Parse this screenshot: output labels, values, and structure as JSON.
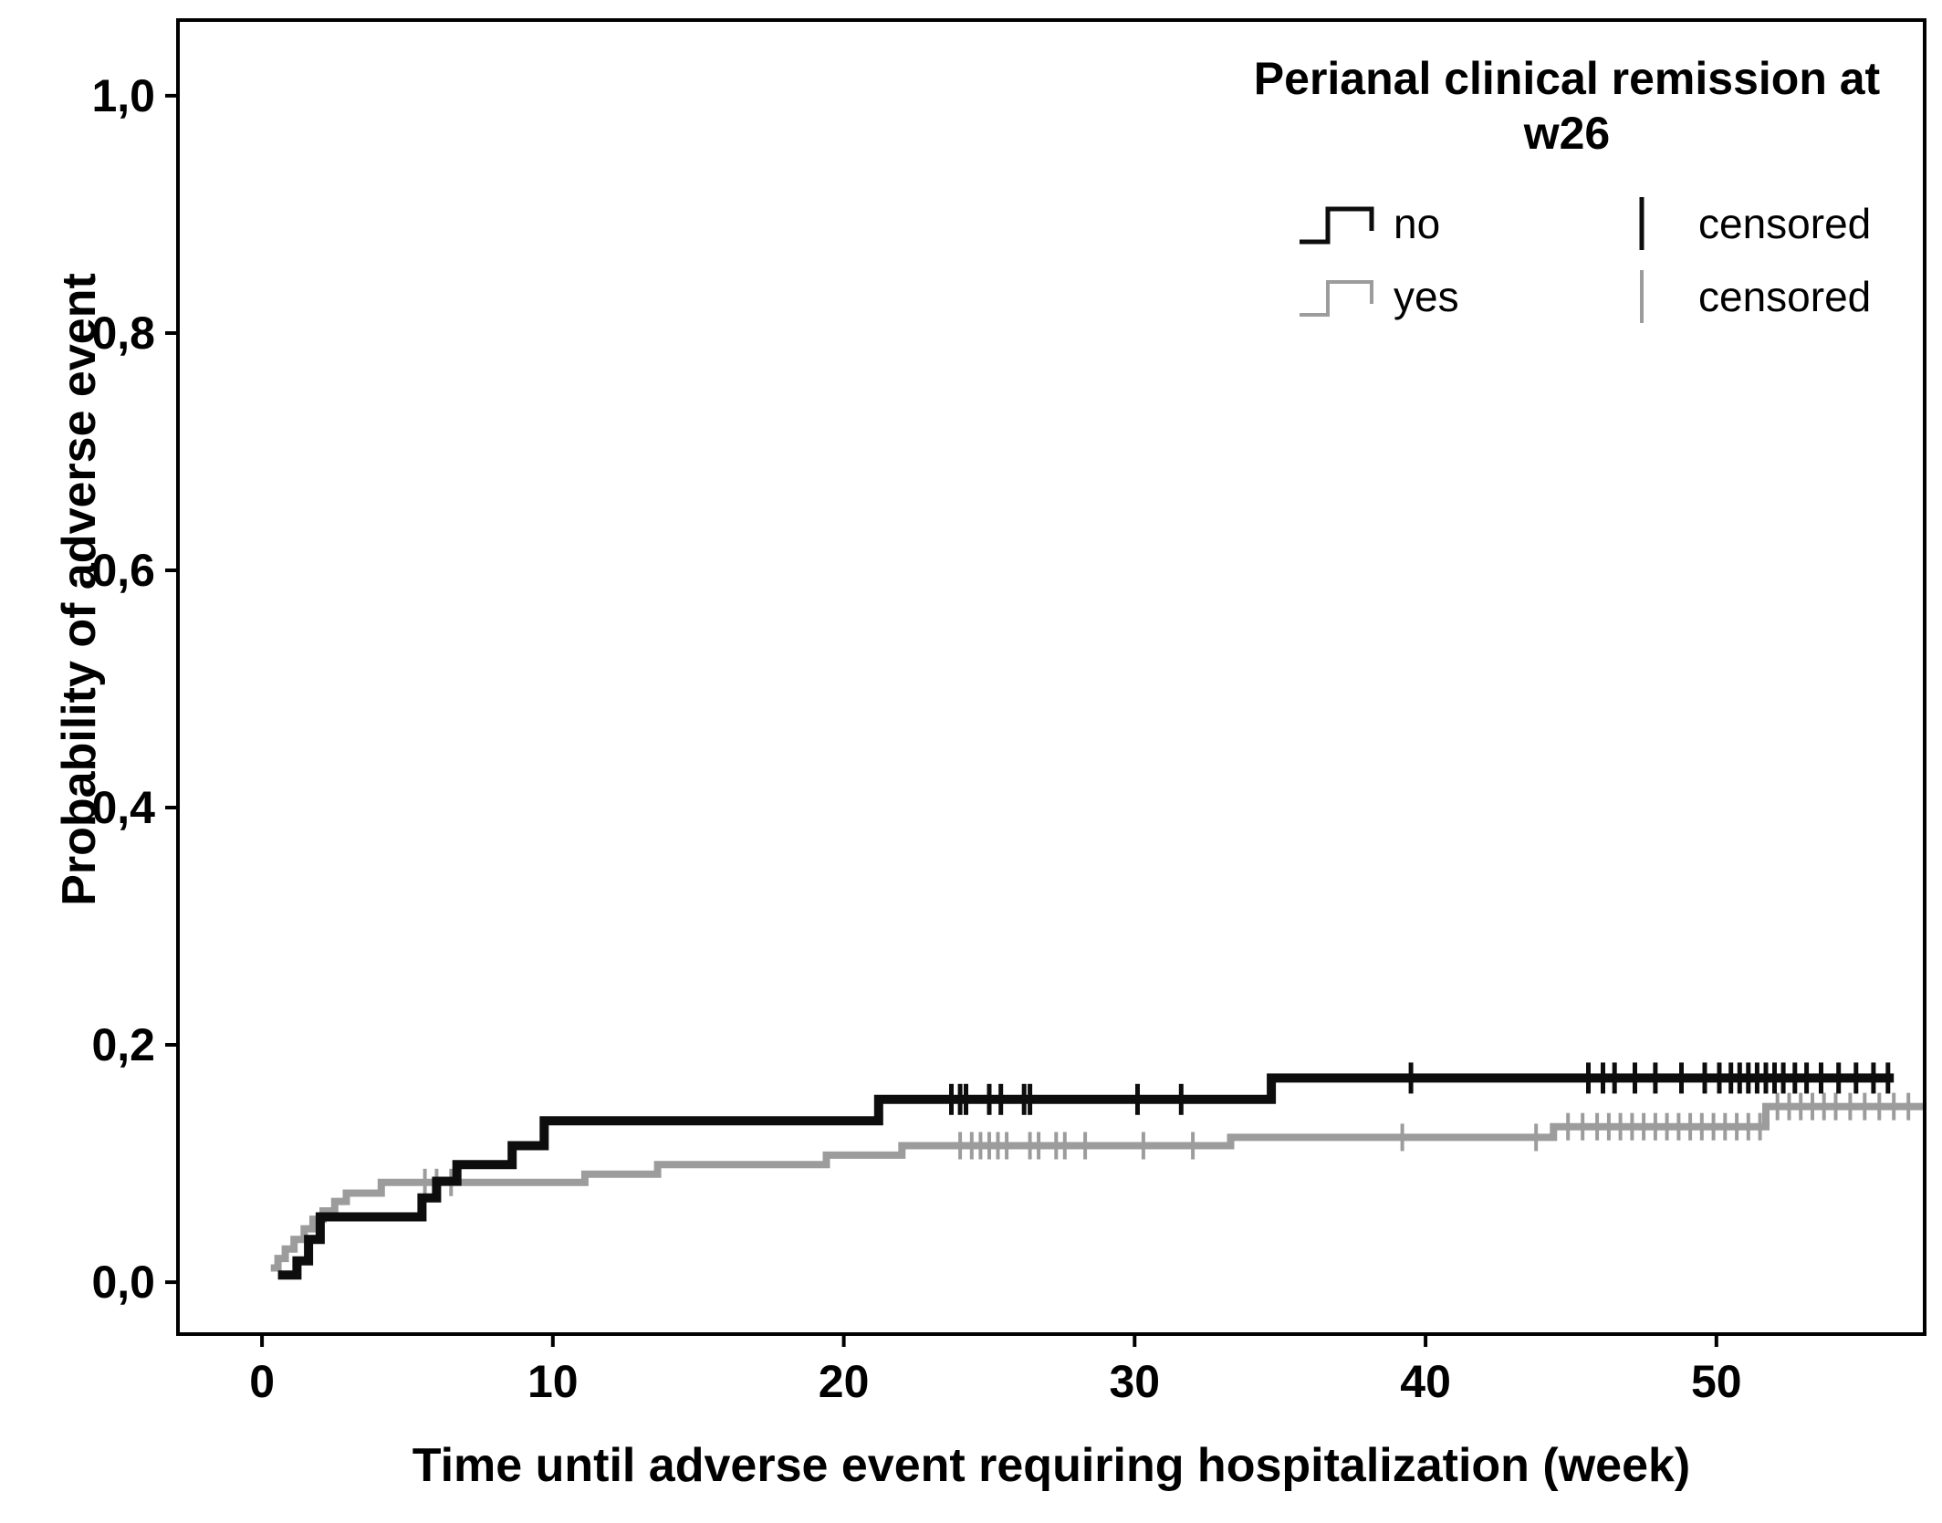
{
  "figure": {
    "background": "#ffffff"
  },
  "legend": {
    "title_line1": "Perianal clinical remission at",
    "title_line2": "w26",
    "entries": [
      {
        "label": "no",
        "color": "#0d0d0d",
        "censored_label": "censored"
      },
      {
        "label": "yes",
        "color": "#9c9c9c",
        "censored_label": "censored"
      }
    ]
  },
  "chart_data": {
    "type": "line",
    "subtype": "kaplan-meier-step",
    "title": "",
    "xlabel": "Time until adverse event requiring hospitalization (week)",
    "ylabel": "Probability of adverse event",
    "xlim": [
      -2.89,
      57.16
    ],
    "ylim": [
      -0.0438,
      1.0638
    ],
    "x_ticks": [
      0,
      10,
      20,
      30,
      40,
      50
    ],
    "y_ticks": [
      {
        "value": 0.0,
        "label": "0,0"
      },
      {
        "value": 0.2,
        "label": "0,2"
      },
      {
        "value": 0.4,
        "label": "0,4"
      },
      {
        "value": 0.6,
        "label": "0,6"
      },
      {
        "value": 0.8,
        "label": "0,8"
      },
      {
        "value": 1.0,
        "label": "1,0"
      }
    ],
    "grid": false,
    "legend_position": "top-right-inside",
    "series": [
      {
        "name": "no",
        "color": "#0d0d0d",
        "line_width": 10,
        "censor_half_height": 17,
        "censor_stroke": 5,
        "steps": [
          [
            0.55,
            0.006
          ],
          [
            1.2,
            0.018
          ],
          [
            1.6,
            0.036
          ],
          [
            2.0,
            0.055
          ],
          [
            5.5,
            0.071
          ],
          [
            6.0,
            0.085
          ],
          [
            6.7,
            0.099
          ],
          [
            8.6,
            0.115
          ],
          [
            9.7,
            0.136
          ],
          [
            21.2,
            0.154
          ],
          [
            34.7,
            0.172
          ]
        ],
        "end_week": 56.1,
        "censored_weeks": [
          23.7,
          24.0,
          24.2,
          25.0,
          25.4,
          26.2,
          26.4,
          30.1,
          31.6,
          39.5,
          45.6,
          46.1,
          46.5,
          47.2,
          47.9,
          48.8,
          49.6,
          50.1,
          50.5,
          50.8,
          51.1,
          51.4,
          51.7,
          52.0,
          52.3,
          52.7,
          53.1,
          53.6,
          54.2,
          54.8,
          55.4,
          55.9
        ]
      },
      {
        "name": "yes",
        "color": "#9c9c9c",
        "line_width": 8,
        "censor_half_height": 15,
        "censor_stroke": 4,
        "steps": [
          [
            0.3,
            0.012
          ],
          [
            0.55,
            0.02
          ],
          [
            0.8,
            0.028
          ],
          [
            1.1,
            0.036
          ],
          [
            1.45,
            0.045
          ],
          [
            1.75,
            0.053
          ],
          [
            2.1,
            0.06
          ],
          [
            2.5,
            0.068
          ],
          [
            2.9,
            0.075
          ],
          [
            4.1,
            0.084
          ],
          [
            11.1,
            0.091
          ],
          [
            13.6,
            0.099
          ],
          [
            19.4,
            0.107
          ],
          [
            22.0,
            0.115
          ],
          [
            33.3,
            0.122
          ],
          [
            44.4,
            0.131
          ],
          [
            51.7,
            0.148
          ]
        ],
        "end_week": 57.15,
        "censored_weeks": [
          5.6,
          6.0,
          6.5,
          24.0,
          24.4,
          24.7,
          25.0,
          25.3,
          25.6,
          26.4,
          26.7,
          27.3,
          27.6,
          28.3,
          30.3,
          32.0,
          39.2,
          43.8,
          44.9,
          45.4,
          45.9,
          46.3,
          46.7,
          47.1,
          47.5,
          47.9,
          48.3,
          48.7,
          49.1,
          49.5,
          49.9,
          50.3,
          50.7,
          51.1,
          51.5,
          52.1,
          52.5,
          52.9,
          53.3,
          53.7,
          54.1,
          54.6,
          55.1,
          55.6,
          56.1,
          56.6
        ]
      }
    ]
  }
}
